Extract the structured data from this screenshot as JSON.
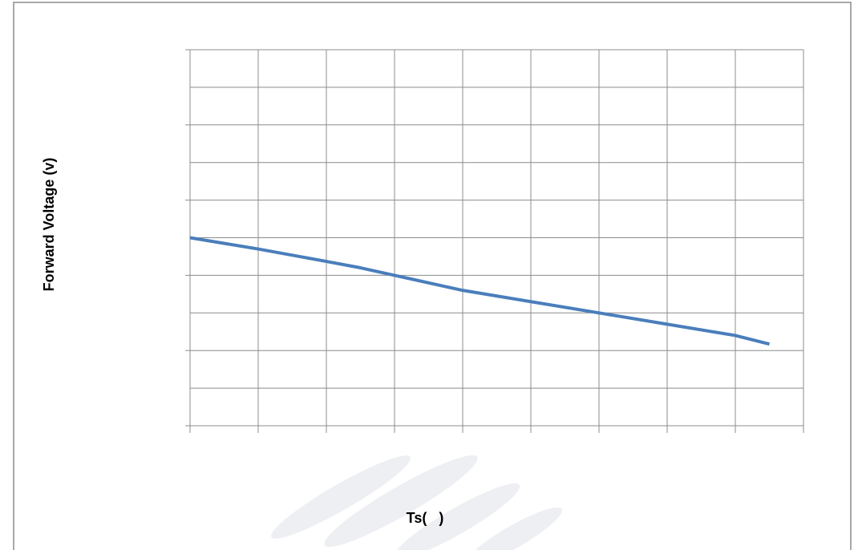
{
  "chart_data": {
    "type": "line",
    "x_label": "Ts(   )",
    "y_label": "Forward Voltage (v)",
    "x": [
      0,
      1,
      2,
      2.5,
      3,
      4,
      5,
      6,
      7,
      8,
      8.5
    ],
    "series": [
      {
        "color": "#4a7ebb",
        "values": [
          5.0,
          4.7,
          4.37,
          4.2,
          4.0,
          3.6,
          3.3,
          3.0,
          2.7,
          2.4,
          2.17
        ]
      }
    ],
    "xlim": [
      0,
      9
    ],
    "ylim": [
      0,
      10
    ],
    "xticks": [
      0,
      1,
      2,
      3,
      4,
      5,
      6,
      7,
      8,
      9
    ],
    "yticks": [
      0,
      1,
      2,
      3,
      4,
      5,
      6,
      7,
      8,
      9,
      10
    ],
    "grid": true
  }
}
